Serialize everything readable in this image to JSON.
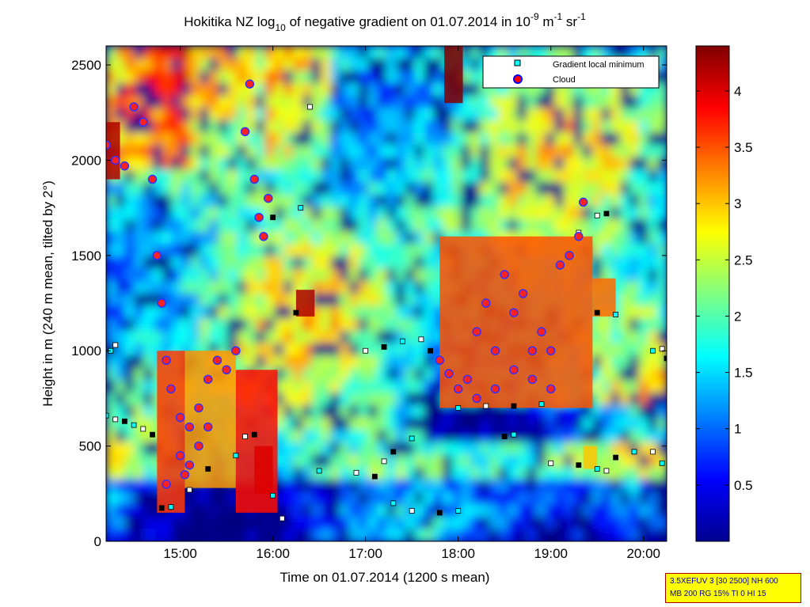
{
  "chart_data": {
    "type": "heatmap",
    "title_parts": {
      "a": "Hokitika NZ log",
      "sub": "10",
      "b": " of negative gradient on 01.07.2014 in 10",
      "sup1": "-9",
      "c": " m",
      "sup2": "-1",
      "d": " sr",
      "sup3": "-1"
    },
    "xlabel": "Time on 01.07.2014 (1200 s mean)",
    "ylabel": "Height in m (240 m mean, tilted by 2°)",
    "x_ticks": [
      "15:00",
      "16:00",
      "17:00",
      "18:00",
      "19:00",
      "20:00"
    ],
    "x_tick_hours": [
      15,
      16,
      17,
      18,
      19,
      20
    ],
    "xlim_hours": [
      14.2,
      20.25
    ],
    "y_ticks": [
      0,
      500,
      1000,
      1500,
      2000,
      2500
    ],
    "ylim": [
      0,
      2600
    ],
    "colorbar": {
      "ticks": [
        "0.5",
        "1",
        "1.5",
        "2",
        "2.5",
        "3",
        "3.5",
        "4"
      ],
      "tick_values": [
        0.5,
        1,
        1.5,
        2,
        2.5,
        3,
        3.5,
        4
      ],
      "range": [
        0,
        4.4
      ],
      "colormap": "jet"
    },
    "legend": {
      "position": "top-right",
      "entries": [
        {
          "label": "Gradient local minimum",
          "marker": "square",
          "color": "#00ffff"
        },
        {
          "label": "Cloud",
          "marker": "circle",
          "color": "#ff0000"
        }
      ]
    },
    "series": [
      {
        "name": "Gradient local minimum",
        "points": [
          [
            14.2,
            660
          ],
          [
            14.3,
            640
          ],
          [
            14.4,
            630
          ],
          [
            14.5,
            610
          ],
          [
            14.6,
            590
          ],
          [
            14.7,
            560
          ],
          [
            14.25,
            1000
          ],
          [
            14.3,
            1030
          ],
          [
            14.8,
            175
          ],
          [
            14.9,
            180
          ],
          [
            15.1,
            270
          ],
          [
            15.3,
            380
          ],
          [
            15.6,
            450
          ],
          [
            15.7,
            550
          ],
          [
            15.8,
            560
          ],
          [
            16.0,
            240
          ],
          [
            16.1,
            120
          ],
          [
            16.25,
            1200
          ],
          [
            16.3,
            1750
          ],
          [
            16.4,
            2280
          ],
          [
            16.0,
            1700
          ],
          [
            16.5,
            370
          ],
          [
            16.9,
            360
          ],
          [
            17.1,
            340
          ],
          [
            17.3,
            200
          ],
          [
            17.5,
            160
          ],
          [
            17.8,
            150
          ],
          [
            18.0,
            160
          ],
          [
            17.2,
            420
          ],
          [
            17.3,
            470
          ],
          [
            17.5,
            540
          ],
          [
            17.0,
            1000
          ],
          [
            17.2,
            1020
          ],
          [
            17.4,
            1050
          ],
          [
            17.6,
            1060
          ],
          [
            17.7,
            1000
          ],
          [
            18.0,
            700
          ],
          [
            18.3,
            710
          ],
          [
            18.6,
            710
          ],
          [
            18.9,
            720
          ],
          [
            19.0,
            410
          ],
          [
            19.3,
            400
          ],
          [
            19.5,
            380
          ],
          [
            19.6,
            370
          ],
          [
            19.7,
            440
          ],
          [
            19.9,
            470
          ],
          [
            20.1,
            470
          ],
          [
            19.5,
            1200
          ],
          [
            19.7,
            1190
          ],
          [
            19.5,
            1710
          ],
          [
            19.6,
            1720
          ],
          [
            20.1,
            1000
          ],
          [
            20.2,
            1010
          ],
          [
            20.25,
            960
          ],
          [
            20.2,
            410
          ],
          [
            19.3,
            1620
          ],
          [
            18.5,
            550
          ],
          [
            18.6,
            560
          ]
        ]
      },
      {
        "name": "Cloud",
        "points": [
          [
            14.2,
            2080
          ],
          [
            14.3,
            2000
          ],
          [
            14.4,
            1970
          ],
          [
            14.5,
            2280
          ],
          [
            14.6,
            2200
          ],
          [
            14.7,
            1900
          ],
          [
            14.75,
            1500
          ],
          [
            14.8,
            1250
          ],
          [
            14.85,
            950
          ],
          [
            14.9,
            800
          ],
          [
            15.0,
            650
          ],
          [
            15.1,
            600
          ],
          [
            15.2,
            700
          ],
          [
            15.3,
            850
          ],
          [
            15.4,
            950
          ],
          [
            15.5,
            900
          ],
          [
            15.6,
            1000
          ],
          [
            15.7,
            2150
          ],
          [
            15.75,
            2400
          ],
          [
            15.8,
            1900
          ],
          [
            15.85,
            1700
          ],
          [
            15.9,
            1600
          ],
          [
            15.95,
            1800
          ],
          [
            15.0,
            450
          ],
          [
            15.1,
            400
          ],
          [
            15.2,
            500
          ],
          [
            15.3,
            600
          ],
          [
            14.85,
            300
          ],
          [
            15.05,
            350
          ],
          [
            17.8,
            950
          ],
          [
            17.9,
            880
          ],
          [
            18.0,
            800
          ],
          [
            18.1,
            850
          ],
          [
            18.2,
            1100
          ],
          [
            18.3,
            1250
          ],
          [
            18.4,
            1000
          ],
          [
            18.5,
            1400
          ],
          [
            18.6,
            1200
          ],
          [
            18.7,
            1300
          ],
          [
            18.8,
            1000
          ],
          [
            18.9,
            1100
          ],
          [
            19.0,
            1000
          ],
          [
            19.1,
            1450
          ],
          [
            19.2,
            1500
          ],
          [
            19.3,
            1600
          ],
          [
            19.35,
            1780
          ],
          [
            18.6,
            900
          ],
          [
            18.8,
            850
          ],
          [
            19.0,
            800
          ],
          [
            18.2,
            750
          ],
          [
            18.4,
            800
          ]
        ]
      }
    ],
    "dense_regions": [
      {
        "x": [
          14.2,
          14.35
        ],
        "y": [
          1900,
          2200
        ],
        "level": 4.2
      },
      {
        "x": [
          14.75,
          15.05
        ],
        "y": [
          150,
          1000
        ],
        "level": 3.6
      },
      {
        "x": [
          15.05,
          15.6
        ],
        "y": [
          280,
          1000
        ],
        "level": 3.2
      },
      {
        "x": [
          15.6,
          16.05
        ],
        "y": [
          150,
          900
        ],
        "level": 3.8
      },
      {
        "x": [
          15.8,
          16.0
        ],
        "y": [
          250,
          500
        ],
        "level": 4.0
      },
      {
        "x": [
          16.25,
          16.45
        ],
        "y": [
          1180,
          1320
        ],
        "level": 4.2
      },
      {
        "x": [
          17.85,
          18.05
        ],
        "y": [
          2300,
          2600
        ],
        "level": 4.4
      },
      {
        "x": [
          17.8,
          19.45
        ],
        "y": [
          700,
          1600
        ],
        "level": 3.5
      },
      {
        "x": [
          19.45,
          19.7
        ],
        "y": [
          1180,
          1380
        ],
        "level": 3.4
      },
      {
        "x": [
          19.35,
          19.5
        ],
        "y": [
          380,
          500
        ],
        "level": 3.0
      }
    ]
  },
  "info_box": {
    "line1": "3.5XEFUV 3 [30 2500] NH 600",
    "line2": "MB 200 RG 15% TI 0 HI 15"
  }
}
